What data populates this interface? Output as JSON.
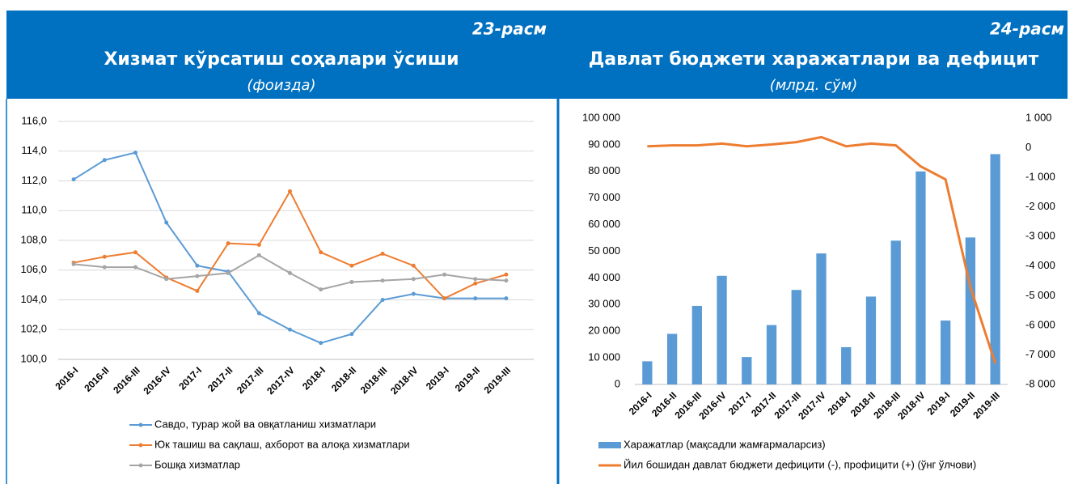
{
  "chart_data": [
    {
      "type": "line",
      "figure_label": "23-расм",
      "title": "Хизмат кўрсатиш соҳалари ўсиши",
      "subtitle": "(фоизда)",
      "categories": [
        "2016-I",
        "2016-II",
        "2016-III",
        "2016-IV",
        "2017-I",
        "2017-II",
        "2017-III",
        "2017-IV",
        "2018-I",
        "2018-II",
        "2018-III",
        "2018-IV",
        "2019-I",
        "2019-II",
        "2019-III"
      ],
      "series": [
        {
          "name": "Савдо, турар жой ва овқатланиш хизматлари",
          "color": "#5b9bd5",
          "values": [
            112.1,
            113.4,
            113.9,
            109.2,
            106.3,
            105.9,
            103.1,
            102.0,
            101.1,
            101.7,
            104.0,
            104.4,
            104.1,
            104.1,
            104.1
          ]
        },
        {
          "name": "Юк ташиш ва сақлаш, ахборот ва алоқа хизматлари",
          "color": "#ed7d31",
          "values": [
            106.5,
            106.9,
            107.2,
            105.5,
            104.6,
            107.8,
            107.7,
            111.3,
            107.2,
            106.3,
            107.1,
            106.3,
            104.1,
            105.1,
            105.7
          ]
        },
        {
          "name": "Бошқа хизматлар",
          "color": "#a5a5a5",
          "values": [
            106.4,
            106.2,
            106.2,
            105.4,
            105.6,
            105.8,
            107.0,
            105.8,
            104.7,
            105.2,
            105.3,
            105.4,
            105.7,
            105.4,
            105.3
          ]
        }
      ],
      "ylim": [
        100,
        116
      ],
      "yticks": [
        {
          "value": 100,
          "label": "100,0"
        },
        {
          "value": 102,
          "label": "102,0"
        },
        {
          "value": 104,
          "label": "104,0"
        },
        {
          "value": 106,
          "label": "106,0"
        },
        {
          "value": 108,
          "label": "108,0"
        },
        {
          "value": 110,
          "label": "110,0"
        },
        {
          "value": 112,
          "label": "112,0"
        },
        {
          "value": 114,
          "label": "114,0"
        },
        {
          "value": 116,
          "label": "116,0"
        }
      ],
      "grid": true
    },
    {
      "type": "bar_line",
      "figure_label": "24-расм",
      "title": "Давлат бюджети харажатлари ва дефицит",
      "subtitle": "(млрд. сўм)",
      "categories": [
        "2016-I",
        "2016-II",
        "2016-III",
        "2016-IV",
        "2017-I",
        "2017-II",
        "2017-III",
        "2017-IV",
        "2018-I",
        "2018-II",
        "2018-III",
        "2018-IV",
        "2019-I",
        "2019-II",
        "2019-III"
      ],
      "series": [
        {
          "name": "Харажатлар (мақсадли жамғармаларсиз)",
          "type": "bar",
          "color": "#5b9bd5",
          "values": [
            8700,
            19000,
            29500,
            40800,
            10300,
            22300,
            35500,
            49200,
            14000,
            33000,
            54000,
            80000,
            24000,
            55200,
            86500
          ]
        },
        {
          "name": "Йил бошидан давлат бюджети дефицити (-), профицити (+)  (ўнг ўлчови)",
          "type": "line",
          "axis": "y2",
          "color": "#ed7d31",
          "values": [
            50,
            80,
            80,
            140,
            50,
            110,
            190,
            360,
            50,
            140,
            80,
            -630,
            -1070,
            -4710,
            -7290
          ]
        }
      ],
      "ylim": [
        0,
        100000
      ],
      "yticks": [
        0,
        {
          "value": 10000,
          "label": "10 000"
        },
        {
          "value": 20000,
          "label": "20 000"
        },
        {
          "value": 30000,
          "label": "30 000"
        },
        {
          "value": 40000,
          "label": "40 000"
        },
        {
          "value": 50000,
          "label": "50 000"
        },
        {
          "value": 60000,
          "label": "60 000"
        },
        {
          "value": 70000,
          "label": "70 000"
        },
        {
          "value": 80000,
          "label": "80 000"
        },
        {
          "value": 90000,
          "label": "90 000"
        },
        {
          "value": 100000,
          "label": "100 000"
        }
      ],
      "y2lim": [
        -8000,
        1000
      ],
      "y2ticks": [
        {
          "value": -8000,
          "label": "-8 000"
        },
        {
          "value": -7000,
          "label": "-7 000"
        },
        {
          "value": -6000,
          "label": "-6 000"
        },
        {
          "value": -5000,
          "label": "-5 000"
        },
        {
          "value": -4000,
          "label": "-4 000"
        },
        {
          "value": -3000,
          "label": "-3 000"
        },
        {
          "value": -2000,
          "label": "-2 000"
        },
        {
          "value": -1000,
          "label": "-1 000"
        },
        0,
        {
          "value": 1000,
          "label": "1 000"
        }
      ],
      "grid": false
    }
  ]
}
